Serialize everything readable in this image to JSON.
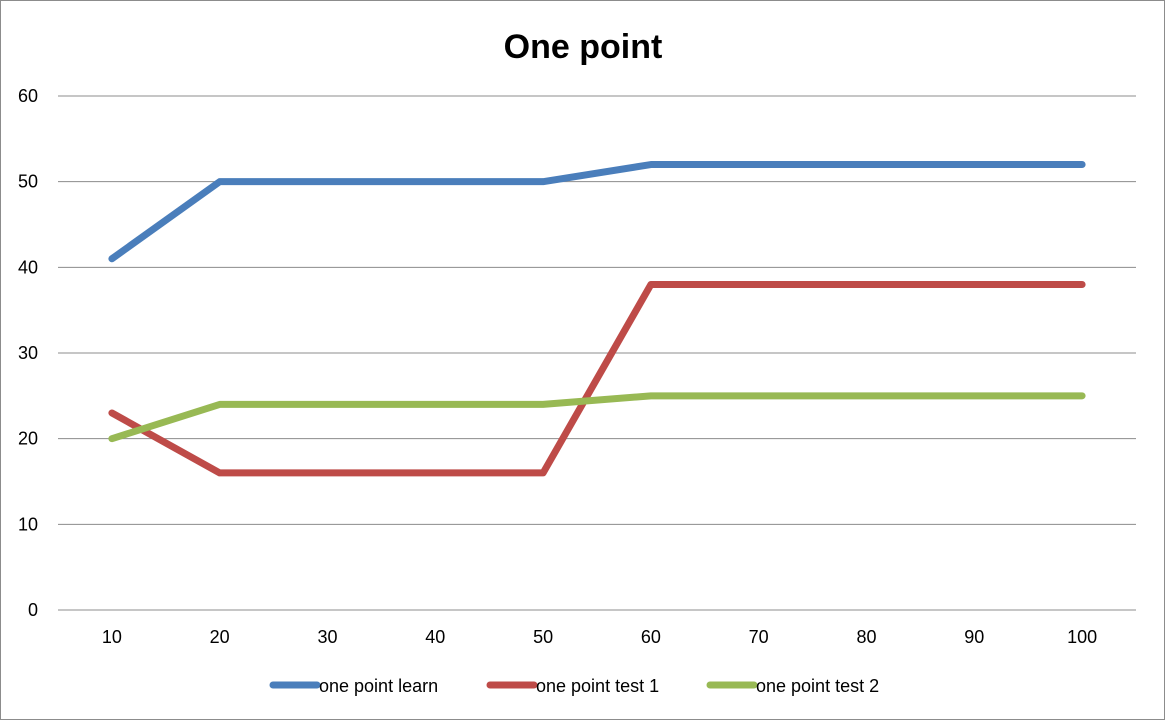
{
  "chart_data": {
    "type": "line",
    "title": "One point",
    "xlabel": "",
    "ylabel": "",
    "x": [
      10,
      20,
      30,
      40,
      50,
      60,
      70,
      80,
      90,
      100
    ],
    "ylim": [
      0,
      60
    ],
    "yticks": [
      0,
      10,
      20,
      30,
      40,
      50,
      60
    ],
    "grid": true,
    "legend_position": "bottom",
    "series": [
      {
        "name": "one point learn",
        "color": "#4a7ebb",
        "values": [
          41,
          50,
          50,
          50,
          50,
          52,
          52,
          52,
          52,
          52
        ]
      },
      {
        "name": "one point test 1",
        "color": "#be4b48",
        "values": [
          23,
          16,
          16,
          16,
          16,
          38,
          38,
          38,
          38,
          38
        ]
      },
      {
        "name": "one point test 2",
        "color": "#98b954",
        "values": [
          20,
          24,
          24,
          24,
          24,
          25,
          25,
          25,
          25,
          25
        ]
      }
    ]
  }
}
